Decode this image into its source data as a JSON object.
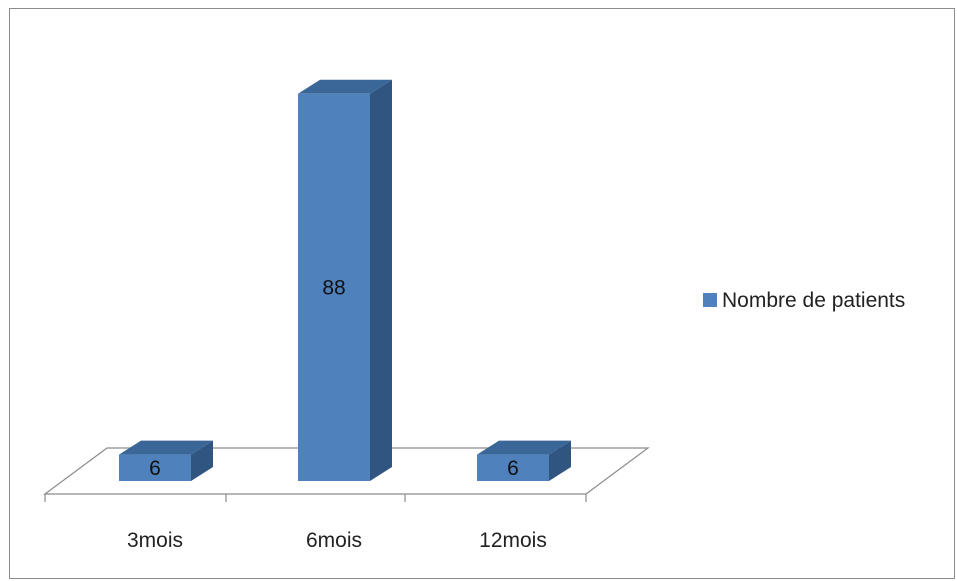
{
  "chart_data": {
    "type": "bar",
    "title": "",
    "xlabel": "",
    "ylabel": "",
    "categories": [
      "3mois",
      "6mois",
      "12mois"
    ],
    "series": [
      {
        "name": "Nombre de patients",
        "values": [
          6,
          88,
          6
        ]
      }
    ],
    "ylim": [
      0,
      100
    ],
    "grid": false,
    "legend_position": "right",
    "style": "3d-column",
    "colors": {
      "bar_front": "#4f81bd",
      "bar_top": "#3b6698",
      "bar_side": "#2f5580",
      "floor_line": "#8c8c8c"
    }
  }
}
